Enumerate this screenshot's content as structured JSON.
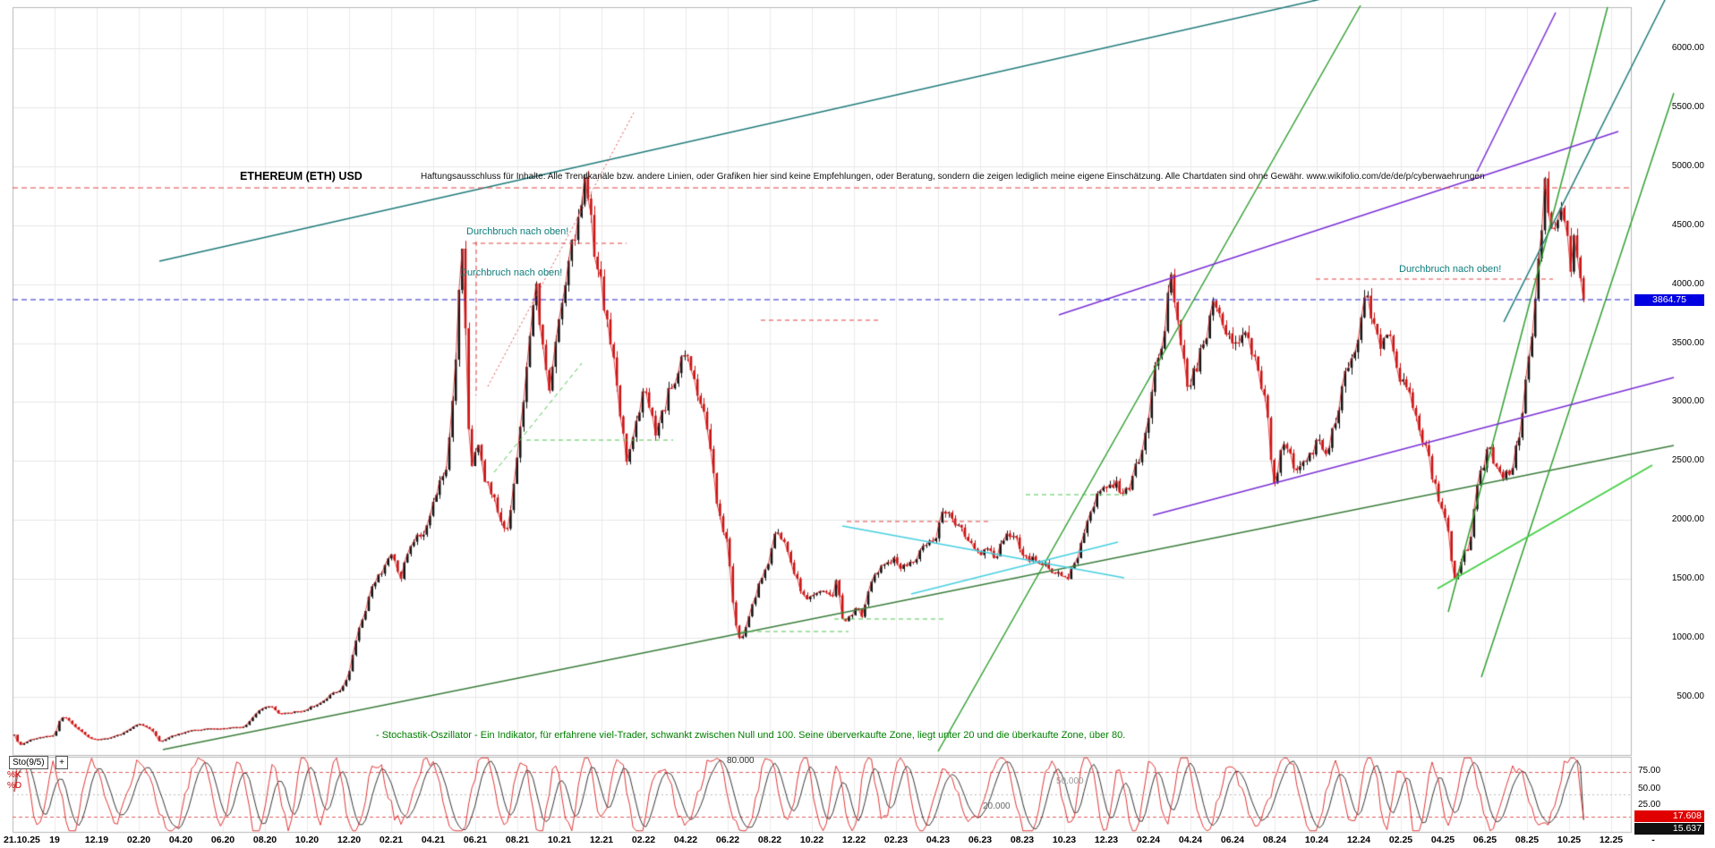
{
  "header": {
    "title": "ETHEREUM (ETH) USD",
    "disclaimer": "Haftungsausschluss für Inhalte: Alle Trendkanäle bzw. andere Linien, oder Grafiken hier sind keine Empfehlungen, oder Beratung, sondern die zeigen lediglich meine eigene Einschätzung. Alle Chartdaten sind ohne Gewähr. www.wikifolio.com/de/de/p/cyberwaehrungen"
  },
  "annotations": {
    "breakout_1": "Durchbruch nach oben!",
    "breakout_2": "Durchbruch nach oben!",
    "breakout_3": "Durchbruch nach oben!",
    "oscillator_note": "- Stochastik-Oszillator - Ein Indikator, für erfahrene viel-Trader, schwankt zwischen Null und 100. Seine überverkaufte Zone, liegt unter 20 und die überkaufte Zone, über 80."
  },
  "y_axis": {
    "labels": [
      {
        "text": "6000.00",
        "value": 6000
      },
      {
        "text": "5500.00",
        "value": 5500
      },
      {
        "text": "5000.00",
        "value": 5000
      },
      {
        "text": "4500.00",
        "value": 4500
      },
      {
        "text": "4000.00",
        "value": 4000
      },
      {
        "text": "3500.00",
        "value": 3500
      },
      {
        "text": "3000.00",
        "value": 3000
      },
      {
        "text": "2500.00",
        "value": 2500
      },
      {
        "text": "2000.00",
        "value": 2000
      },
      {
        "text": "1500.00",
        "value": 1500
      },
      {
        "text": "1000.00",
        "value": 1000
      },
      {
        "text": "500.00",
        "value": 500
      }
    ],
    "badge": "3864.75"
  },
  "x_axis": {
    "labels": [
      "21.10.25",
      "19",
      "12.19",
      "02.20",
      "04.20",
      "06.20",
      "08.20",
      "10.20",
      "12.20",
      "02.21",
      "04.21",
      "06.21",
      "08.21",
      "10.21",
      "12.21",
      "02.22",
      "04.22",
      "06.22",
      "08.22",
      "10.22",
      "12.22",
      "02.23",
      "04.23",
      "06.23",
      "08.23",
      "10.23",
      "12.23",
      "02.24",
      "04.24",
      "06.24",
      "08.24",
      "10.24",
      "12.24",
      "02.25",
      "04.25",
      "06.25",
      "08.25",
      "10.25",
      "12.25",
      "-"
    ]
  },
  "oscillator_panel": {
    "indicator_label": "Sto(9/5)",
    "add_button": "+",
    "k_label": "%K",
    "d_label": "%D",
    "scale_labels": [
      {
        "text": "75.00",
        "value": 75
      },
      {
        "text": "50.00",
        "value": 50
      },
      {
        "text": "25.00",
        "value": 25
      }
    ],
    "float_labels": [
      {
        "text": "80.000"
      },
      {
        "text": "50.000"
      },
      {
        "text": "20.000"
      }
    ],
    "k_badge": "17.608",
    "d_badge": "15.637"
  },
  "chart_data": {
    "type": "candlestick",
    "title": "ETHEREUM (ETH) USD",
    "current_price": 3864.75,
    "y_ticks": [
      500,
      1000,
      1500,
      2000,
      2500,
      3000,
      3500,
      4000,
      4500,
      5000,
      5500,
      6000
    ],
    "ylim": [
      0,
      6330
    ],
    "grid": true,
    "legend_position": "none",
    "x_labels": [
      "21.10.25",
      "19",
      "12.19",
      "02.20",
      "04.20",
      "06.20",
      "08.20",
      "10.20",
      "12.20",
      "02.21",
      "04.21",
      "06.21",
      "08.21",
      "10.21",
      "12.21",
      "02.22",
      "04.22",
      "06.22",
      "08.22",
      "10.22",
      "12.22",
      "02.23",
      "04.23",
      "06.23",
      "08.23",
      "10.23",
      "12.23",
      "02.24",
      "04.24",
      "06.24",
      "08.24",
      "10.24",
      "12.24",
      "02.25",
      "04.25",
      "06.25",
      "08.25",
      "10.25",
      "12.25",
      "-"
    ],
    "anchors": [
      [
        0,
        215
      ],
      [
        0.12,
        120
      ],
      [
        0.2,
        92
      ],
      [
        0.45,
        140
      ],
      [
        0.8,
        165
      ],
      [
        1,
        175
      ],
      [
        1.15,
        335
      ],
      [
        1.35,
        300
      ],
      [
        1.6,
        215
      ],
      [
        1.85,
        150
      ],
      [
        2,
        132
      ],
      [
        2.3,
        148
      ],
      [
        2.6,
        188
      ],
      [
        3,
        272
      ],
      [
        3.3,
        228
      ],
      [
        3.5,
        115
      ],
      [
        3.8,
        172
      ],
      [
        4.2,
        205
      ],
      [
        4.6,
        232
      ],
      [
        5,
        228
      ],
      [
        5.5,
        243
      ],
      [
        5.9,
        400
      ],
      [
        6.1,
        432
      ],
      [
        6.35,
        355
      ],
      [
        6.7,
        378
      ],
      [
        7,
        390
      ],
      [
        7.4,
        465
      ],
      [
        7.8,
        568
      ],
      [
        8,
        690
      ],
      [
        8.2,
        1060
      ],
      [
        8.45,
        1310
      ],
      [
        8.7,
        1520
      ],
      [
        9,
        1730
      ],
      [
        9.2,
        1490
      ],
      [
        9.5,
        1830
      ],
      [
        9.8,
        1960
      ],
      [
        10.1,
        2260
      ],
      [
        10.35,
        2560
      ],
      [
        10.55,
        3460
      ],
      [
        10.68,
        4330
      ],
      [
        10.78,
        3380
      ],
      [
        10.88,
        2260
      ],
      [
        11.05,
        2710
      ],
      [
        11.25,
        2360
      ],
      [
        11.5,
        2160
      ],
      [
        11.75,
        1850
      ],
      [
        11.95,
        2420
      ],
      [
        12.2,
        3210
      ],
      [
        12.45,
        3920
      ],
      [
        12.6,
        3420
      ],
      [
        12.75,
        3020
      ],
      [
        12.95,
        3520
      ],
      [
        13.2,
        4160
      ],
      [
        13.45,
        4460
      ],
      [
        13.62,
        4830
      ],
      [
        13.8,
        4310
      ],
      [
        13.95,
        4060
      ],
      [
        14.1,
        3760
      ],
      [
        14.35,
        3160
      ],
      [
        14.6,
        2510
      ],
      [
        14.85,
        2960
      ],
      [
        15.05,
        3110
      ],
      [
        15.3,
        2660
      ],
      [
        15.6,
        3060
      ],
      [
        15.95,
        3460
      ],
      [
        16.2,
        3260
      ],
      [
        16.5,
        2910
      ],
      [
        16.75,
        2060
      ],
      [
        17,
        1760
      ],
      [
        17.15,
        1210
      ],
      [
        17.3,
        950
      ],
      [
        17.5,
        1160
      ],
      [
        17.75,
        1490
      ],
      [
        18,
        1660
      ],
      [
        18.15,
        1910
      ],
      [
        18.35,
        1760
      ],
      [
        18.6,
        1490
      ],
      [
        18.85,
        1310
      ],
      [
        19.1,
        1330
      ],
      [
        19.35,
        1390
      ],
      [
        19.5,
        1310
      ],
      [
        19.6,
        1530
      ],
      [
        19.68,
        1260
      ],
      [
        19.78,
        1110
      ],
      [
        20,
        1240
      ],
      [
        20.2,
        1190
      ],
      [
        20.45,
        1530
      ],
      [
        20.7,
        1630
      ],
      [
        21,
        1650
      ],
      [
        21.3,
        1570
      ],
      [
        21.6,
        1790
      ],
      [
        21.9,
        1840
      ],
      [
        22.15,
        2090
      ],
      [
        22.4,
        1960
      ],
      [
        22.65,
        1840
      ],
      [
        22.9,
        1790
      ],
      [
        23.15,
        1730
      ],
      [
        23.35,
        1660
      ],
      [
        23.6,
        1910
      ],
      [
        23.85,
        1860
      ],
      [
        24.1,
        1690
      ],
      [
        24.35,
        1650
      ],
      [
        24.6,
        1630
      ],
      [
        24.85,
        1590
      ],
      [
        25.1,
        1570
      ],
      [
        25.35,
        1730
      ],
      [
        25.6,
        2070
      ],
      [
        25.85,
        2260
      ],
      [
        26.05,
        2360
      ],
      [
        26.25,
        2290
      ],
      [
        26.5,
        2230
      ],
      [
        26.75,
        2490
      ],
      [
        27,
        2960
      ],
      [
        27.25,
        3410
      ],
      [
        27.55,
        4070
      ],
      [
        27.75,
        3560
      ],
      [
        27.95,
        3110
      ],
      [
        28.2,
        3360
      ],
      [
        28.5,
        3810
      ],
      [
        28.75,
        3660
      ],
      [
        29,
        3430
      ],
      [
        29.3,
        3490
      ],
      [
        29.6,
        3310
      ],
      [
        29.85,
        2910
      ],
      [
        29.95,
        2260
      ],
      [
        30.1,
        2510
      ],
      [
        30.25,
        2660
      ],
      [
        30.5,
        2330
      ],
      [
        30.75,
        2490
      ],
      [
        31,
        2630
      ],
      [
        31.2,
        2490
      ],
      [
        31.5,
        2910
      ],
      [
        31.75,
        3360
      ],
      [
        32,
        3660
      ],
      [
        32.2,
        3990
      ],
      [
        32.4,
        3610
      ],
      [
        32.55,
        3410
      ],
      [
        32.7,
        3690
      ],
      [
        32.9,
        3360
      ],
      [
        33.1,
        3160
      ],
      [
        33.3,
        2960
      ],
      [
        33.5,
        2730
      ],
      [
        33.75,
        2360
      ],
      [
        34,
        2090
      ],
      [
        34.15,
        1830
      ],
      [
        34.28,
        1480
      ],
      [
        34.45,
        1630
      ],
      [
        34.65,
        1810
      ],
      [
        34.85,
        2460
      ],
      [
        35.05,
        2590
      ],
      [
        35.25,
        2490
      ],
      [
        35.45,
        2430
      ],
      [
        35.65,
        2460
      ],
      [
        35.85,
        2760
      ],
      [
        36.05,
        3460
      ],
      [
        36.2,
        3890
      ],
      [
        36.32,
        4360
      ],
      [
        36.42,
        4880
      ],
      [
        36.55,
        4460
      ],
      [
        36.68,
        4310
      ],
      [
        36.8,
        4630
      ],
      [
        36.95,
        4360
      ],
      [
        37.05,
        4160
      ],
      [
        37.15,
        4490
      ],
      [
        37.25,
        4060
      ],
      [
        37.33,
        3910
      ],
      [
        37.38,
        3864.75
      ]
    ],
    "trend_lines": [
      {
        "name": "teal-trend-main",
        "color": "#1f7a7a",
        "width": 1.5,
        "dash": null,
        "pts": [
          178,
          292,
          1870,
          -90
        ]
      },
      {
        "name": "teal-trend-right",
        "color": "#1f7a7a",
        "width": 1.5,
        "dash": null,
        "pts": [
          1680,
          360,
          1870,
          -20
        ]
      },
      {
        "name": "green-support-long",
        "color": "#3a7d3a",
        "width": 1.5,
        "dash": null,
        "pts": [
          182,
          838,
          1870,
          498
        ]
      },
      {
        "name": "green-steep-2024",
        "color": "#33a033",
        "width": 1.5,
        "dash": null,
        "pts": [
          1048,
          840,
          1520,
          6
        ]
      },
      {
        "name": "green-steep-2025a",
        "color": "#33a033",
        "width": 1.5,
        "dash": null,
        "pts": [
          1618,
          684,
          1796,
          8
        ]
      },
      {
        "name": "green-steep-2025b",
        "color": "#33a033",
        "width": 1.5,
        "dash": null,
        "pts": [
          1655,
          757,
          1870,
          104
        ]
      },
      {
        "name": "green-bright-short",
        "color": "#46d046",
        "width": 2,
        "dash": null,
        "pts": [
          1606,
          658,
          1846,
          520
        ]
      },
      {
        "name": "purple-channel-upper",
        "color": "#7b2fd6",
        "width": 1.5,
        "dash": null,
        "pts": [
          1183,
          352,
          1808,
          147
        ]
      },
      {
        "name": "purple-channel-lower",
        "color": "#7b2fd6",
        "width": 1.5,
        "dash": null,
        "pts": [
          1288,
          576,
          1870,
          422
        ]
      },
      {
        "name": "purple-steep-topright",
        "color": "#7b2fd6",
        "width": 1.5,
        "dash": null,
        "pts": [
          1650,
          192,
          1738,
          14
        ]
      },
      {
        "name": "cyan-wedge-upper",
        "color": "#45cfe0",
        "width": 1.5,
        "dash": null,
        "pts": [
          941,
          588,
          1256,
          646
        ]
      },
      {
        "name": "cyan-wedge-lower",
        "color": "#45cfe0",
        "width": 1.5,
        "dash": null,
        "pts": [
          1018,
          664,
          1249,
          606
        ]
      },
      {
        "name": "red-dotted-rally",
        "color": "#e05050",
        "width": 1,
        "dash": [
          2,
          3
        ],
        "pts": [
          545,
          432,
          708,
          126
        ]
      },
      {
        "name": "green-dashed-diag",
        "color": "#4fc24f",
        "width": 1,
        "dash": [
          5,
          4
        ],
        "pts": [
          552,
          528,
          650,
          406
        ]
      },
      {
        "name": "resistance-ath-dashed",
        "color": "#e04040",
        "width": 1,
        "dash": [
          6,
          4
        ],
        "pts": [
          14,
          210,
          1822,
          210
        ]
      },
      {
        "name": "current-price-dashed",
        "color": "#2222cc",
        "width": 1,
        "dash": [
          6,
          4
        ],
        "pts": [
          14,
          335,
          1822,
          335
        ]
      },
      {
        "name": "red-dash-seg-1",
        "color": "#e04040",
        "width": 1,
        "dash": [
          5,
          4
        ],
        "pts": [
          528,
          272,
          700,
          272
        ]
      },
      {
        "name": "red-dash-vert",
        "color": "#e04040",
        "width": 1,
        "dash": [
          5,
          4
        ],
        "pts": [
          532,
          270,
          532,
          442
        ]
      },
      {
        "name": "red-dash-seg-2",
        "color": "#e04040",
        "width": 1,
        "dash": [
          5,
          4
        ],
        "pts": [
          850,
          358,
          985,
          358
        ]
      },
      {
        "name": "red-dash-seg-3",
        "color": "#e04040",
        "width": 1,
        "dash": [
          5,
          4
        ],
        "pts": [
          946,
          583,
          1108,
          583
        ]
      },
      {
        "name": "red-dash-seg-4",
        "color": "#e04040",
        "width": 1,
        "dash": [
          5,
          4
        ],
        "pts": [
          1470,
          312,
          1735,
          312
        ]
      },
      {
        "name": "green-dash-seg-1",
        "color": "#4fc24f",
        "width": 1,
        "dash": [
          5,
          4
        ],
        "pts": [
          588,
          492,
          752,
          492
        ]
      },
      {
        "name": "green-dash-seg-2",
        "color": "#4fc24f",
        "width": 1,
        "dash": [
          5,
          4
        ],
        "pts": [
          828,
          706,
          948,
          706
        ]
      },
      {
        "name": "green-dash-seg-3",
        "color": "#4fc24f",
        "width": 1,
        "dash": [
          5,
          4
        ],
        "pts": [
          932,
          692,
          1058,
          692
        ]
      },
      {
        "name": "green-dash-seg-4",
        "color": "#4fc24f",
        "width": 1,
        "dash": [
          5,
          4
        ],
        "pts": [
          1146,
          553,
          1262,
          553
        ]
      }
    ],
    "oscillator": {
      "indicator": "Stochastic",
      "params": "9/5",
      "range": [
        0,
        100
      ],
      "guides": [
        {
          "v": 80,
          "color": "#e06060",
          "dash": [
            4,
            3
          ]
        },
        {
          "v": 50,
          "color": "#bbbbbb",
          "dash": [
            2,
            3
          ]
        },
        {
          "v": 20,
          "color": "#e06060",
          "dash": [
            4,
            3
          ]
        }
      ],
      "k_last": 17.608,
      "d_last": 15.637
    },
    "candle": {
      "step": 3.6,
      "width": 2.6
    },
    "colors": {
      "up": "#141414",
      "down": "#c81414",
      "overlay_line": "#e02222",
      "grid_v": "#ececec",
      "grid_h": "#e6e6e6",
      "border": "#b8b8b8",
      "badge_blue": "#0000e0"
    },
    "seed": 1337
  }
}
